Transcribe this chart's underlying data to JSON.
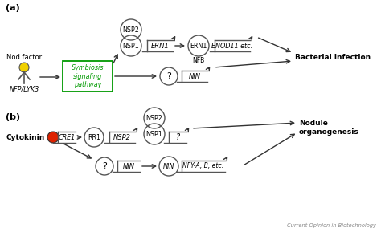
{
  "background_color": "#ffffff",
  "panel_a_label": "(a)",
  "panel_b_label": "(b)",
  "footer_text": "Current Opinion in Biotechnology",
  "panel_a": {
    "nod_factor_text": "Nod factor",
    "nfp_lyk3_text": "NFP/LYK3",
    "symbiosis_box_text": "Symbiosis\nsignaling\npathway",
    "symbiosis_box_color": "#009900",
    "question_circle_text": "?",
    "nsp2_circle_text": "NSP2",
    "nsp1_circle_text": "NSP1",
    "ern1_gene_text": "ERN1",
    "ern1_circle_text": "ERN1",
    "nfb_text": "NFB",
    "enod11_text": "ENOD11 etc.",
    "nin_text": "NIN",
    "bacterial_infection_text": "Bacterial infection"
  },
  "panel_b": {
    "cytokinin_text": "Cytokinin",
    "cre1_text": "CRE1",
    "cytokinin_circle_color": "#dd2200",
    "rr1_circle_text": "RR1",
    "nsp2_gene_text": "NSP2",
    "nsp2_circle_text": "NSP2",
    "nsp1_circle_text": "NSP1",
    "question1_text": "?",
    "question2_text": "?",
    "nin_gene_text": "NIN",
    "nin_circle_text": "NIN",
    "nfy_text": "NFY-A, B, etc.",
    "nodule_text": "Nodule\norganogenesis"
  }
}
